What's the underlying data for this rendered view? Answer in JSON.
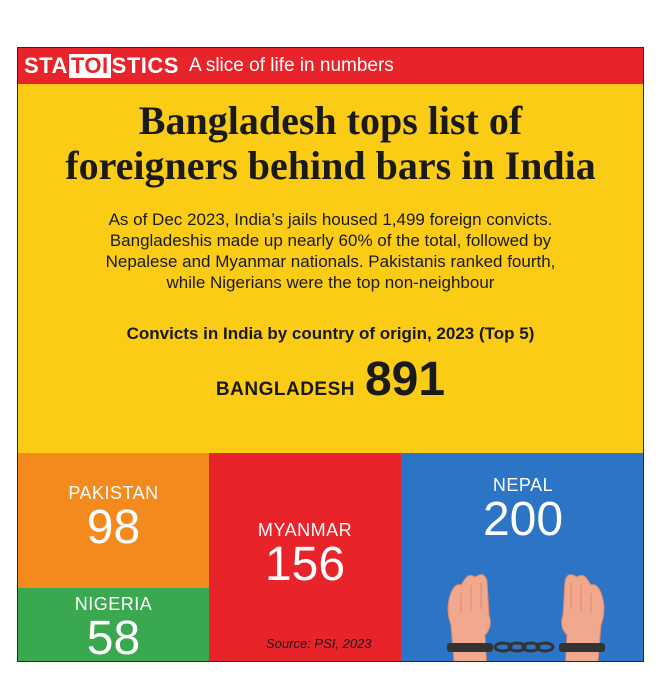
{
  "banner": {
    "brand_pre": "STA",
    "brand_mid": "TOI",
    "brand_post": "STICS",
    "tagline": "A slice of life in numbers"
  },
  "headline": {
    "line1": "Bangladesh tops list of",
    "line2": "foreigners behind bars in India"
  },
  "subtext": {
    "line1": "As of Dec 2023, India’s jails housed 1,499 foreign convicts.",
    "line2": "Bangladeshis made up nearly 60% of the total, followed by",
    "line3": "Nepalese and Myanmar nationals. Pakistanis ranked fourth,",
    "line4": "while Nigerians were the top non-neighbour"
  },
  "source": "Source: PSI, 2023",
  "colors": {
    "banner": "#e8232a",
    "bangladesh": "#fbcc16",
    "pakistan": "#f48a1e",
    "nigeria": "#3aa84e",
    "myanmar": "#e8232a",
    "nepal": "#2b74c6"
  },
  "chart_data": {
    "type": "treemap",
    "title": "Convicts in India by country of origin, 2023 (Top 5)",
    "categories": [
      "BANGLADESH",
      "NEPAL",
      "MYANMAR",
      "PAKISTAN",
      "NIGERIA"
    ],
    "values": [
      891,
      200,
      156,
      98,
      58
    ],
    "labels": {
      "BANGLADESH": "891",
      "NEPAL": "200",
      "MYANMAR": "156",
      "PAKISTAN": "98",
      "NIGERIA": "58"
    }
  },
  "icons": {
    "nepal_tile": "handcuffed-hands-icon"
  }
}
